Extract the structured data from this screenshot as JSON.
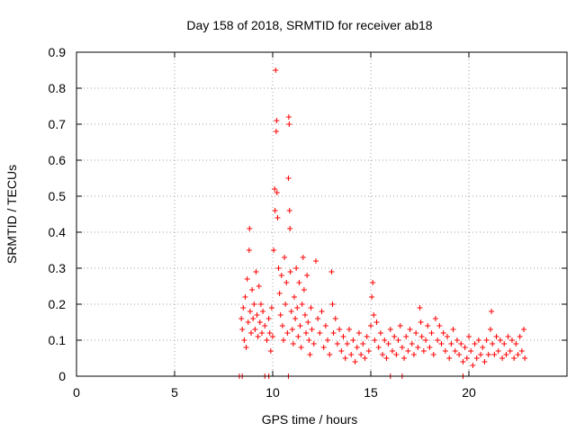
{
  "chart_data": {
    "type": "scatter",
    "title": "Day 158 of 2018, SRMTID for receiver ab18",
    "xlabel": "GPS time / hours",
    "ylabel": "SRMTID / TECUs",
    "xlim": [
      0,
      25
    ],
    "ylim": [
      0,
      0.9
    ],
    "xticks": [
      0,
      5,
      10,
      15,
      20
    ],
    "yticks": [
      0,
      0.1,
      0.2,
      0.3,
      0.4,
      0.5,
      0.6,
      0.7,
      0.8,
      0.9
    ],
    "grid": true,
    "series": [
      {
        "name": "SRMTID",
        "marker": "+",
        "color": "#ff0000",
        "points": [
          [
            8.4,
            0.16
          ],
          [
            8.45,
            0.13
          ],
          [
            8.5,
            0.19
          ],
          [
            8.55,
            0.1
          ],
          [
            8.6,
            0.22
          ],
          [
            8.65,
            0.08
          ],
          [
            8.7,
            0.27
          ],
          [
            8.75,
            0.15
          ],
          [
            8.8,
            0.35
          ],
          [
            8.82,
            0.41
          ],
          [
            8.85,
            0.18
          ],
          [
            8.9,
            0.12
          ],
          [
            8.95,
            0.24
          ],
          [
            9.0,
            0.16
          ],
          [
            9.05,
            0.2
          ],
          [
            9.1,
            0.13
          ],
          [
            9.15,
            0.29
          ],
          [
            9.2,
            0.17
          ],
          [
            9.25,
            0.11
          ],
          [
            9.3,
            0.25
          ],
          [
            9.35,
            0.15
          ],
          [
            9.4,
            0.2
          ],
          [
            9.45,
            0.12
          ],
          [
            9.5,
            0.18
          ],
          [
            9.6,
            0.14
          ],
          [
            9.7,
            0.1
          ],
          [
            9.8,
            0.16
          ],
          [
            9.85,
            0.12
          ],
          [
            9.9,
            0.07
          ],
          [
            9.95,
            0.19
          ],
          [
            10.0,
            0.11
          ],
          [
            10.05,
            0.35
          ],
          [
            10.1,
            0.52
          ],
          [
            10.12,
            0.46
          ],
          [
            10.15,
            0.85
          ],
          [
            10.18,
            0.68
          ],
          [
            10.2,
            0.71
          ],
          [
            10.22,
            0.51
          ],
          [
            10.25,
            0.44
          ],
          [
            10.3,
            0.3
          ],
          [
            10.35,
            0.23
          ],
          [
            10.4,
            0.17
          ],
          [
            10.45,
            0.28
          ],
          [
            10.5,
            0.14
          ],
          [
            10.55,
            0.1
          ],
          [
            10.6,
            0.33
          ],
          [
            10.65,
            0.2
          ],
          [
            10.7,
            0.26
          ],
          [
            10.75,
            0.12
          ],
          [
            10.8,
            0.55
          ],
          [
            10.82,
            0.72
          ],
          [
            10.84,
            0.7
          ],
          [
            10.86,
            0.46
          ],
          [
            10.88,
            0.41
          ],
          [
            10.9,
            0.29
          ],
          [
            10.95,
            0.18
          ],
          [
            11.0,
            0.13
          ],
          [
            11.05,
            0.09
          ],
          [
            11.1,
            0.22
          ],
          [
            11.15,
            0.16
          ],
          [
            11.2,
            0.3
          ],
          [
            11.25,
            0.19
          ],
          [
            11.3,
            0.11
          ],
          [
            11.35,
            0.26
          ],
          [
            11.4,
            0.14
          ],
          [
            11.45,
            0.08
          ],
          [
            11.5,
            0.2
          ],
          [
            11.55,
            0.33
          ],
          [
            11.6,
            0.24
          ],
          [
            11.65,
            0.17
          ],
          [
            11.7,
            0.12
          ],
          [
            11.75,
            0.28
          ],
          [
            11.8,
            0.15
          ],
          [
            11.85,
            0.1
          ],
          [
            11.9,
            0.06
          ],
          [
            11.95,
            0.19
          ],
          [
            12.0,
            0.13
          ],
          [
            12.1,
            0.09
          ],
          [
            12.2,
            0.32
          ],
          [
            12.3,
            0.16
          ],
          [
            12.4,
            0.12
          ],
          [
            12.5,
            0.18
          ],
          [
            12.6,
            0.08
          ],
          [
            12.7,
            0.14
          ],
          [
            12.8,
            0.1
          ],
          [
            12.9,
            0.06
          ],
          [
            13.0,
            0.29
          ],
          [
            13.05,
            0.2
          ],
          [
            13.1,
            0.12
          ],
          [
            13.2,
            0.16
          ],
          [
            13.3,
            0.09
          ],
          [
            13.4,
            0.13
          ],
          [
            13.5,
            0.07
          ],
          [
            13.6,
            0.11
          ],
          [
            13.7,
            0.05
          ],
          [
            13.8,
            0.09
          ],
          [
            13.9,
            0.13
          ],
          [
            14.0,
            0.06
          ],
          [
            14.1,
            0.1
          ],
          [
            14.2,
            0.04
          ],
          [
            14.3,
            0.08
          ],
          [
            14.4,
            0.12
          ],
          [
            14.5,
            0.06
          ],
          [
            14.6,
            0.09
          ],
          [
            14.7,
            0.05
          ],
          [
            14.8,
            0.11
          ],
          [
            14.9,
            0.07
          ],
          [
            15.0,
            0.14
          ],
          [
            15.05,
            0.22
          ],
          [
            15.1,
            0.26
          ],
          [
            15.15,
            0.17
          ],
          [
            15.2,
            0.1
          ],
          [
            15.3,
            0.15
          ],
          [
            15.4,
            0.08
          ],
          [
            15.5,
            0.12
          ],
          [
            15.6,
            0.06
          ],
          [
            15.7,
            0.1
          ],
          [
            15.8,
            0.05
          ],
          [
            15.9,
            0.09
          ],
          [
            16.0,
            0.13
          ],
          [
            16.1,
            0.07
          ],
          [
            16.2,
            0.11
          ],
          [
            16.3,
            0.06
          ],
          [
            16.4,
            0.1
          ],
          [
            16.5,
            0.14
          ],
          [
            16.6,
            0.08
          ],
          [
            16.7,
            0.05
          ],
          [
            16.8,
            0.11
          ],
          [
            16.9,
            0.07
          ],
          [
            17.0,
            0.13
          ],
          [
            17.1,
            0.09
          ],
          [
            17.2,
            0.06
          ],
          [
            17.3,
            0.12
          ],
          [
            17.4,
            0.08
          ],
          [
            17.5,
            0.19
          ],
          [
            17.55,
            0.15
          ],
          [
            17.6,
            0.11
          ],
          [
            17.7,
            0.07
          ],
          [
            17.8,
            0.1
          ],
          [
            17.9,
            0.14
          ],
          [
            18.0,
            0.08
          ],
          [
            18.1,
            0.12
          ],
          [
            18.2,
            0.06
          ],
          [
            18.3,
            0.16
          ],
          [
            18.4,
            0.1
          ],
          [
            18.5,
            0.14
          ],
          [
            18.6,
            0.09
          ],
          [
            18.7,
            0.12
          ],
          [
            18.8,
            0.07
          ],
          [
            18.9,
            0.11
          ],
          [
            19.0,
            0.05
          ],
          [
            19.1,
            0.09
          ],
          [
            19.2,
            0.13
          ],
          [
            19.3,
            0.07
          ],
          [
            19.4,
            0.1
          ],
          [
            19.5,
            0.06
          ],
          [
            19.6,
            0.09
          ],
          [
            19.7,
            0.04
          ],
          [
            19.8,
            0.08
          ],
          [
            19.9,
            0.05
          ],
          [
            20.0,
            0.11
          ],
          [
            20.1,
            0.07
          ],
          [
            20.2,
            0.03
          ],
          [
            20.3,
            0.09
          ],
          [
            20.4,
            0.05
          ],
          [
            20.5,
            0.1
          ],
          [
            20.6,
            0.06
          ],
          [
            20.7,
            0.08
          ],
          [
            20.8,
            0.04
          ],
          [
            20.9,
            0.1
          ],
          [
            21.0,
            0.06
          ],
          [
            21.1,
            0.13
          ],
          [
            21.15,
            0.18
          ],
          [
            21.2,
            0.09
          ],
          [
            21.3,
            0.06
          ],
          [
            21.4,
            0.11
          ],
          [
            21.5,
            0.07
          ],
          [
            21.6,
            0.1
          ],
          [
            21.7,
            0.05
          ],
          [
            21.8,
            0.09
          ],
          [
            21.9,
            0.06
          ],
          [
            22.0,
            0.11
          ],
          [
            22.1,
            0.07
          ],
          [
            22.2,
            0.1
          ],
          [
            22.3,
            0.05
          ],
          [
            22.4,
            0.09
          ],
          [
            22.5,
            0.06
          ],
          [
            22.6,
            0.11
          ],
          [
            22.7,
            0.07
          ],
          [
            22.8,
            0.13
          ],
          [
            22.85,
            0.05
          ],
          [
            8.3,
            0.0
          ],
          [
            8.45,
            0.0
          ],
          [
            9.6,
            0.0
          ],
          [
            9.8,
            0.0
          ],
          [
            10.8,
            0.0
          ],
          [
            16.0,
            0.0
          ],
          [
            16.6,
            0.0
          ],
          [
            19.7,
            0.0
          ]
        ]
      }
    ]
  }
}
